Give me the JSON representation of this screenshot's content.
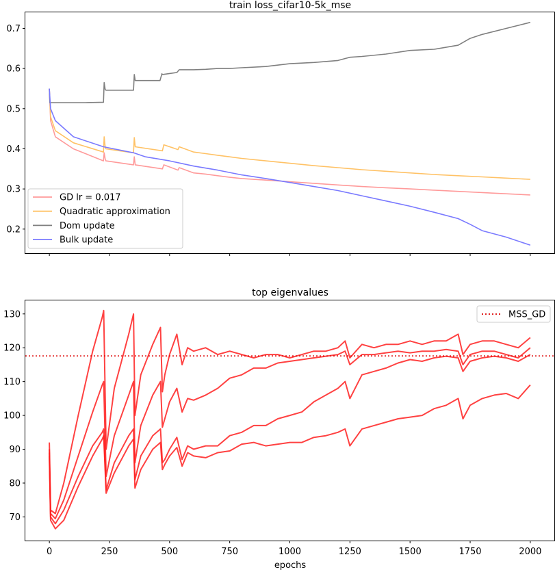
{
  "chart_data": [
    {
      "type": "line",
      "title": "train loss_cifar10-5k_mse",
      "xlabel": "",
      "ylabel": "",
      "xlim": [
        -100,
        2100
      ],
      "ylim": [
        0.14,
        0.74
      ],
      "xticks": [
        0,
        250,
        500,
        750,
        1000,
        1250,
        1500,
        1750,
        2000
      ],
      "xticklabels_shown": false,
      "yticks": [
        0.2,
        0.3,
        0.4,
        0.5,
        0.6,
        0.7
      ],
      "legend": "lower-left",
      "series": [
        {
          "name": "GD lr = 0.017",
          "color": "#ff9a9a",
          "x": [
            0,
            5,
            25,
            100,
            225,
            228,
            232,
            235,
            350,
            353,
            357,
            470,
            476,
            535,
            540,
            600,
            650,
            700,
            750,
            800,
            900,
            1000,
            1100,
            1200,
            1300,
            1400,
            1500,
            1600,
            1700,
            1800,
            1900,
            2000
          ],
          "y": [
            0.55,
            0.47,
            0.43,
            0.4,
            0.37,
            0.39,
            0.375,
            0.37,
            0.36,
            0.38,
            0.36,
            0.35,
            0.36,
            0.347,
            0.353,
            0.34,
            0.337,
            0.333,
            0.329,
            0.326,
            0.322,
            0.318,
            0.314,
            0.31,
            0.306,
            0.303,
            0.3,
            0.297,
            0.294,
            0.291,
            0.288,
            0.285
          ]
        },
        {
          "name": "Quadratic approximation",
          "color": "#ffc266",
          "x": [
            0,
            5,
            25,
            100,
            225,
            228,
            232,
            235,
            350,
            353,
            357,
            470,
            476,
            535,
            540,
            600,
            650,
            700,
            750,
            800,
            900,
            1000,
            1100,
            1200,
            1300,
            1400,
            1500,
            1600,
            1700,
            1800,
            1900,
            2000
          ],
          "y": [
            0.55,
            0.48,
            0.445,
            0.415,
            0.392,
            0.43,
            0.405,
            0.4,
            0.39,
            0.428,
            0.405,
            0.395,
            0.41,
            0.398,
            0.405,
            0.392,
            0.388,
            0.384,
            0.38,
            0.376,
            0.37,
            0.364,
            0.358,
            0.353,
            0.348,
            0.344,
            0.34,
            0.336,
            0.333,
            0.33,
            0.327,
            0.324
          ]
        },
        {
          "name": "Dom update",
          "color": "#7f7f7f",
          "x": [
            0,
            2,
            150,
            225,
            228,
            232,
            235,
            350,
            353,
            357,
            460,
            468,
            470,
            530,
            540,
            600,
            650,
            700,
            750,
            800,
            900,
            1000,
            1100,
            1200,
            1250,
            1300,
            1400,
            1500,
            1600,
            1700,
            1750,
            1800,
            1900,
            2000
          ],
          "y": [
            0.55,
            0.515,
            0.515,
            0.516,
            0.565,
            0.548,
            0.546,
            0.546,
            0.585,
            0.57,
            0.57,
            0.587,
            0.585,
            0.59,
            0.597,
            0.597,
            0.598,
            0.6,
            0.6,
            0.602,
            0.605,
            0.612,
            0.615,
            0.62,
            0.628,
            0.63,
            0.636,
            0.645,
            0.648,
            0.658,
            0.675,
            0.685,
            0.7,
            0.715
          ]
        },
        {
          "name": "Bulk update",
          "color": "#7a7aff",
          "x": [
            0,
            5,
            25,
            100,
            225,
            350,
            400,
            500,
            600,
            700,
            800,
            900,
            1000,
            1100,
            1200,
            1300,
            1400,
            1500,
            1600,
            1700,
            1750,
            1800,
            1900,
            2000
          ],
          "y": [
            0.55,
            0.5,
            0.47,
            0.43,
            0.405,
            0.39,
            0.38,
            0.37,
            0.357,
            0.347,
            0.335,
            0.326,
            0.316,
            0.306,
            0.296,
            0.283,
            0.27,
            0.257,
            0.242,
            0.226,
            0.212,
            0.196,
            0.18,
            0.16
          ]
        }
      ]
    },
    {
      "type": "line",
      "title": "top eigenvalues",
      "xlabel": "epochs",
      "ylabel": "",
      "xlim": [
        -100,
        2100
      ],
      "ylim": [
        63,
        134
      ],
      "xticks": [
        0,
        250,
        500,
        750,
        1000,
        1250,
        1500,
        1750,
        2000
      ],
      "yticks": [
        70,
        80,
        90,
        100,
        110,
        120,
        130
      ],
      "legend": "top-right",
      "reference_line": {
        "name": "MSS_GD",
        "value": 117.6,
        "color": "#dd0000",
        "style": "dotted"
      },
      "series": [
        {
          "color": "#ff2020",
          "x": [
            0,
            5,
            25,
            60,
            120,
            180,
            220,
            226,
            236,
            270,
            330,
            350,
            356,
            380,
            430,
            462,
            470,
            480,
            500,
            530,
            552,
            575,
            600,
            650,
            700,
            750,
            800,
            850,
            900,
            950,
            1000,
            1050,
            1100,
            1150,
            1200,
            1230,
            1250,
            1300,
            1350,
            1400,
            1450,
            1500,
            1550,
            1600,
            1650,
            1700,
            1720,
            1750,
            1800,
            1850,
            1900,
            1950,
            2000
          ],
          "y": [
            88,
            69,
            66.5,
            69,
            79,
            88,
            93,
            94,
            77,
            83,
            91,
            93,
            78.5,
            84,
            90,
            92,
            84,
            85.5,
            88,
            90.5,
            85,
            89,
            88,
            87.5,
            89,
            89.5,
            91.5,
            92,
            91,
            91.5,
            92,
            92,
            93.5,
            94,
            95,
            96,
            91,
            96,
            97,
            98,
            99,
            99.5,
            100,
            102,
            103,
            105,
            99,
            103,
            105,
            106,
            106.5,
            105,
            109
          ]
        },
        {
          "color": "#ff2020",
          "x": [
            0,
            5,
            25,
            60,
            120,
            180,
            220,
            226,
            236,
            270,
            330,
            350,
            356,
            380,
            430,
            462,
            470,
            480,
            500,
            530,
            552,
            575,
            600,
            650,
            700,
            750,
            800,
            850,
            900,
            950,
            1000,
            1050,
            1100,
            1150,
            1200,
            1230,
            1250,
            1300,
            1350,
            1400,
            1450,
            1500,
            1550,
            1600,
            1650,
            1700,
            1720,
            1750,
            1800,
            1850,
            1900,
            1950,
            2000
          ],
          "y": [
            89,
            70,
            68,
            72,
            82,
            91,
            95,
            96,
            78,
            86,
            94,
            96,
            81,
            88,
            94,
            96,
            86,
            87,
            90,
            93.5,
            87,
            91,
            90,
            91,
            91,
            94,
            95,
            97,
            97,
            99,
            100,
            101,
            104,
            106,
            108,
            110,
            105,
            112,
            113,
            114,
            115.5,
            116.5,
            116,
            117,
            117.5,
            117,
            113,
            116,
            117,
            117.5,
            117,
            116,
            118
          ]
        },
        {
          "color": "#ff2020",
          "x": [
            0,
            5,
            25,
            60,
            120,
            180,
            220,
            226,
            236,
            270,
            330,
            350,
            356,
            380,
            430,
            462,
            470,
            480,
            500,
            530,
            552,
            575,
            600,
            650,
            700,
            750,
            800,
            850,
            900,
            950,
            1000,
            1050,
            1100,
            1150,
            1200,
            1230,
            1250,
            1300,
            1350,
            1400,
            1450,
            1500,
            1550,
            1600,
            1650,
            1700,
            1720,
            1750,
            1800,
            1850,
            1900,
            1950,
            2000
          ],
          "y": [
            90,
            71,
            69.5,
            75,
            88,
            101,
            109,
            110,
            82,
            94,
            106,
            110,
            86,
            97,
            106,
            110,
            96.5,
            99,
            104,
            108,
            101,
            105,
            104.5,
            106,
            108,
            111,
            112,
            114,
            114,
            115.5,
            116,
            116.5,
            117,
            117.5,
            118,
            119,
            115,
            118,
            118,
            118.5,
            119,
            118.5,
            119,
            119,
            119.5,
            119,
            115,
            118,
            119,
            119,
            118,
            117,
            120
          ]
        },
        {
          "color": "#ff2020",
          "x": [
            0,
            5,
            25,
            60,
            120,
            180,
            220,
            226,
            236,
            270,
            330,
            350,
            356,
            380,
            430,
            462,
            470,
            480,
            500,
            530,
            552,
            575,
            600,
            650,
            700,
            750,
            800,
            850,
            900,
            950,
            1000,
            1050,
            1100,
            1150,
            1200,
            1230,
            1250,
            1300,
            1350,
            1400,
            1450,
            1500,
            1550,
            1600,
            1650,
            1700,
            1720,
            1750,
            1800,
            1850,
            1900,
            1950,
            2000
          ],
          "y": [
            92,
            72,
            71,
            80,
            100,
            119,
            129,
            131,
            90,
            108,
            124,
            130,
            100,
            112,
            121,
            126,
            107,
            112,
            118,
            124,
            115,
            120,
            119,
            120,
            118,
            119,
            118,
            117,
            118,
            118,
            117,
            118,
            119,
            119,
            120,
            122,
            117,
            121,
            120,
            121,
            121,
            122,
            121,
            122,
            122,
            124,
            118,
            121,
            122,
            122,
            121,
            120,
            123
          ]
        }
      ]
    }
  ]
}
